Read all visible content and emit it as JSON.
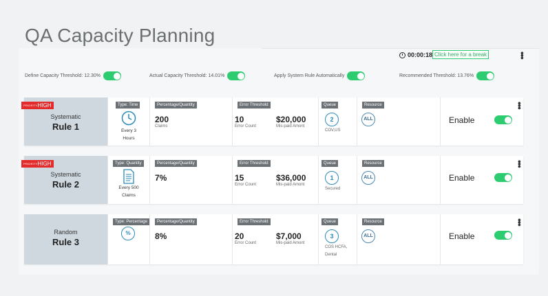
{
  "page": {
    "title": "QA Capacity Planning"
  },
  "header": {
    "timer": "00:00:18",
    "break_label": "Click here for a break"
  },
  "thresholds": [
    {
      "label": "Define Capacity Threshold: 12.30%"
    },
    {
      "label": "Actual Capacity Threshold: 14.01%"
    },
    {
      "label": "Apply System Rule Automatically"
    },
    {
      "label": "Recommended Threshold: 13.76%"
    }
  ],
  "column_tags": {
    "percentage": "Percentage/Quantity",
    "error": "Error Threshold",
    "queue": "Queue",
    "resource": "Resource"
  },
  "rules": [
    {
      "priority_small": "PRIORITY",
      "priority": "HIGH",
      "kind": "Systematic",
      "name": "Rule 1",
      "type_tag": "Type: Time",
      "type_icon": "clock-icon",
      "type_text_1": "Every 3",
      "type_text_2": "Hours",
      "quantity": "200",
      "quantity_label": "Claims",
      "error_count": "10",
      "error_count_label": "Error Count",
      "amount": "$20,000",
      "amount_label": "Mis-paid Amont",
      "queue_num": "2",
      "queue_text_1": "COV,US",
      "queue_text_2": "",
      "resource": "ALL",
      "status": "Enable"
    },
    {
      "priority_small": "PRIORITY",
      "priority": "HIGH",
      "kind": "Systematic",
      "name": "Rule 2",
      "type_tag": "Type: Quantity",
      "type_icon": "document-icon",
      "type_text_1": "Every 500",
      "type_text_2": "Claims",
      "quantity": "7%",
      "quantity_label": "",
      "error_count": "15",
      "error_count_label": "Error Count",
      "amount": "$36,000",
      "amount_label": "Mis-paid Amont",
      "queue_num": "1",
      "queue_text_1": "Secured",
      "queue_text_2": "",
      "resource": "ALL",
      "status": "Enable"
    },
    {
      "priority_small": "",
      "priority": "",
      "kind": "Random",
      "name": "Rule 3",
      "type_tag": "Type: Percentage",
      "type_icon": "percent-icon",
      "type_text_1": "",
      "type_text_2": "",
      "quantity": "8%",
      "quantity_label": "",
      "error_count": "20",
      "error_count_label": "Error Count",
      "amount": "$7,000",
      "amount_label": "Mis-paid Amont",
      "queue_num": "3",
      "queue_text_1": "COS HCFA,",
      "queue_text_2": "Dental",
      "resource": "ALL",
      "status": "Enable"
    }
  ],
  "colors": {
    "accent_green": "#2ecc71",
    "priority_red": "#e32b2b",
    "rule_panel": "#cfd8df",
    "tag_grey": "#6c7176"
  },
  "icons": {
    "timer": "clock-icon",
    "menu": "kebab-icon",
    "percent": "%"
  }
}
